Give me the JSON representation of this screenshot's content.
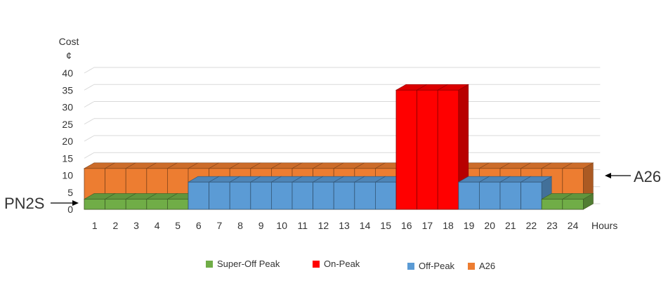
{
  "chart_data": {
    "type": "bar",
    "y_axis_title_line1": "Cost",
    "y_axis_title_line2": "¢",
    "x_axis_title": "Hours",
    "yticks": [
      0,
      5,
      10,
      15,
      20,
      25,
      30,
      35,
      40
    ],
    "ylim": [
      0,
      40
    ],
    "grid": true,
    "categories": [
      "1",
      "2",
      "3",
      "4",
      "5",
      "6",
      "7",
      "8",
      "9",
      "10",
      "11",
      "12",
      "13",
      "14",
      "15",
      "16",
      "17",
      "18",
      "19",
      "20",
      "21",
      "22",
      "23",
      "24"
    ],
    "series": [
      {
        "name": "A26",
        "color": "#ED7D31",
        "values": [
          12,
          12,
          12,
          12,
          12,
          12,
          12,
          12,
          12,
          12,
          12,
          12,
          12,
          12,
          12,
          12,
          12,
          12,
          12,
          12,
          12,
          12,
          12,
          12
        ]
      },
      {
        "name": "Super-Off Peak",
        "color": "#70AD47",
        "values": [
          3,
          3,
          3,
          3,
          3,
          null,
          null,
          null,
          null,
          null,
          null,
          null,
          null,
          null,
          null,
          null,
          null,
          null,
          null,
          null,
          null,
          null,
          3,
          3
        ]
      },
      {
        "name": "Off-Peak",
        "color": "#5B9BD5",
        "values": [
          null,
          null,
          null,
          null,
          null,
          8,
          8,
          8,
          8,
          8,
          8,
          8,
          8,
          8,
          8,
          null,
          null,
          null,
          8,
          8,
          8,
          8,
          null,
          null
        ]
      },
      {
        "name": "On-Peak",
        "color": "#FF0000",
        "values": [
          null,
          null,
          null,
          null,
          null,
          null,
          null,
          null,
          null,
          null,
          null,
          null,
          null,
          null,
          null,
          35,
          35,
          35,
          null,
          null,
          null,
          null,
          null,
          null
        ]
      }
    ],
    "annotations": [
      {
        "text": "PN2S",
        "side": "left"
      },
      {
        "text": "A26",
        "side": "right"
      }
    ],
    "legend": {
      "placement": "bottom",
      "items": [
        {
          "label": "Super-Off Peak",
          "color": "#70AD47"
        },
        {
          "label": "On-Peak",
          "color": "#FF0000"
        },
        {
          "label": "Off-Peak",
          "color": "#5B9BD5"
        },
        {
          "label": "A26",
          "color": "#ED7D31"
        }
      ]
    }
  }
}
